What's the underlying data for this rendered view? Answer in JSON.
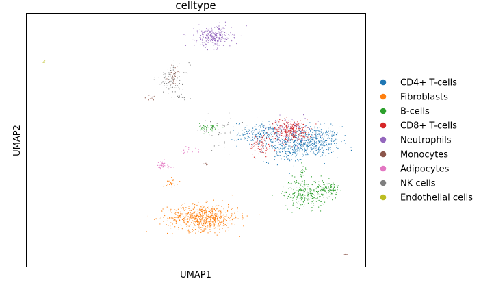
{
  "chart_data": {
    "type": "scatter",
    "title": "celltype",
    "xlabel": "UMAP1",
    "ylabel": "UMAP2",
    "grid": false,
    "ticks": false,
    "legend_position": "right",
    "xlim": [
      0,
      100
    ],
    "ylim": [
      0,
      100
    ],
    "series": [
      {
        "name": "CD4+ T-cells",
        "color": "#1f77b4",
        "clusters": [
          {
            "cx": 84,
            "cy": 49.5,
            "sx": 4.2,
            "sy": 3.0,
            "n": 500
          },
          {
            "cx": 69,
            "cy": 52.5,
            "sx": 3.4,
            "sy": 2.5,
            "n": 220
          },
          {
            "cx": 76,
            "cy": 46.5,
            "sx": 3.0,
            "sy": 2.5,
            "n": 130
          }
        ]
      },
      {
        "name": "Fibroblasts",
        "color": "#ff7f0e",
        "clusters": [
          {
            "cx": 52,
            "cy": 19.5,
            "sx": 5.2,
            "sy": 2.6,
            "n": 650
          },
          {
            "cx": 43,
            "cy": 33.5,
            "sx": 0.9,
            "sy": 0.9,
            "n": 25
          }
        ]
      },
      {
        "name": "B-cells",
        "color": "#2ca02c",
        "clusters": [
          {
            "cx": 82,
            "cy": 29,
            "sx": 3.2,
            "sy": 2.8,
            "n": 260
          },
          {
            "cx": 89,
            "cy": 31,
            "sx": 1.6,
            "sy": 1.4,
            "n": 90
          },
          {
            "cx": 54,
            "cy": 55,
            "sx": 1.5,
            "sy": 0.9,
            "n": 45
          },
          {
            "cx": 81.5,
            "cy": 37,
            "sx": 0.4,
            "sy": 1.5,
            "n": 25
          }
        ]
      },
      {
        "name": "CD8+ T-cells",
        "color": "#d62728",
        "clusters": [
          {
            "cx": 78,
            "cy": 54,
            "sx": 3.0,
            "sy": 2.2,
            "n": 260
          },
          {
            "cx": 69,
            "cy": 48,
            "sx": 1.6,
            "sy": 2.2,
            "n": 70
          }
        ]
      },
      {
        "name": "Neutrophils",
        "color": "#9467bd",
        "clusters": [
          {
            "cx": 55,
            "cy": 91,
            "sx": 2.7,
            "sy": 2.0,
            "n": 260
          },
          {
            "cx": 77,
            "cy": 54,
            "sx": 4.5,
            "sy": 3.0,
            "n": 60
          }
        ]
      },
      {
        "name": "Monocytes",
        "color": "#8c564b",
        "clusters": [
          {
            "cx": 43.5,
            "cy": 76,
            "sx": 1.0,
            "sy": 1.8,
            "n": 30
          },
          {
            "cx": 53,
            "cy": 40.5,
            "sx": 0.3,
            "sy": 0.3,
            "n": 6
          },
          {
            "cx": 37,
            "cy": 67,
            "sx": 1.0,
            "sy": 0.5,
            "n": 10
          },
          {
            "cx": 94,
            "cy": 5,
            "sx": 0.6,
            "sy": 0.2,
            "n": 10
          }
        ]
      },
      {
        "name": "Adipocytes",
        "color": "#e377c2",
        "clusters": [
          {
            "cx": 40,
            "cy": 40,
            "sx": 1.5,
            "sy": 1.0,
            "n": 40
          },
          {
            "cx": 47,
            "cy": 46,
            "sx": 1.5,
            "sy": 0.8,
            "n": 15
          }
        ]
      },
      {
        "name": "NK cells",
        "color": "#7f7f7f",
        "clusters": [
          {
            "cx": 43,
            "cy": 74,
            "sx": 2.5,
            "sy": 3.0,
            "n": 80
          },
          {
            "cx": 57,
            "cy": 54,
            "sx": 3.0,
            "sy": 3.0,
            "n": 40
          },
          {
            "cx": 45,
            "cy": 67,
            "sx": 1.5,
            "sy": 0.5,
            "n": 12
          }
        ]
      },
      {
        "name": "Endothelial cells",
        "color": "#bcbd22",
        "clusters": [
          {
            "cx": 5,
            "cy": 81,
            "sx": 0.2,
            "sy": 0.3,
            "n": 8
          }
        ]
      }
    ]
  }
}
